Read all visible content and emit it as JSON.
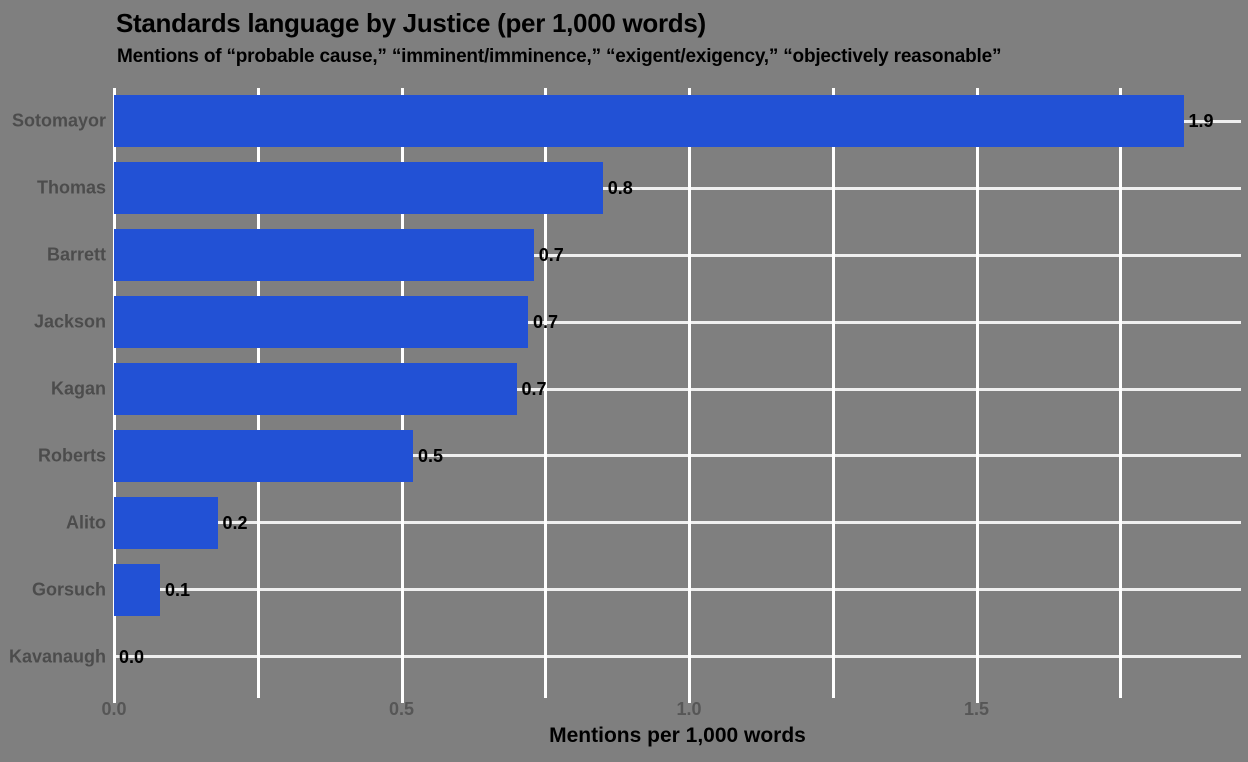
{
  "chart_data": {
    "type": "bar",
    "orientation": "horizontal",
    "title": "Standards language by Justice (per 1,000 words)",
    "subtitle": "Mentions of “probable cause,” “imminent/imminence,” “exigent/exigency,” “objectively reasonable”",
    "xlabel": "Mentions per 1,000 words",
    "categories": [
      "Sotomayor",
      "Thomas",
      "Barrett",
      "Jackson",
      "Kagan",
      "Roberts",
      "Alito",
      "Gorsuch",
      "Kavanaugh"
    ],
    "values": [
      1.9,
      0.8,
      0.7,
      0.7,
      0.7,
      0.5,
      0.2,
      0.1,
      0.0
    ],
    "value_labels": [
      "1.9",
      "0.8",
      "0.7",
      "0.7",
      "0.7",
      "0.5",
      "0.2",
      "0.1",
      "0.0"
    ],
    "bar_values_precise": [
      1.86,
      0.85,
      0.73,
      0.72,
      0.7,
      0.52,
      0.18,
      0.08,
      0.0
    ],
    "xlim": [
      0,
      1.96
    ],
    "x_grid_values": [
      0,
      0.25,
      0.5,
      0.75,
      1.0,
      1.25,
      1.5,
      1.75
    ],
    "x_major_ticks": [
      {
        "value": 0,
        "label": "0.0"
      },
      {
        "value": 0.5,
        "label": "0.5"
      },
      {
        "value": 1.0,
        "label": "1.0"
      },
      {
        "value": 1.5,
        "label": "1.5"
      }
    ],
    "grid": {
      "vertical_minor_interval": 0.25,
      "horizontal_at_each_category": true
    },
    "legend": "none",
    "colors": {
      "background": "#7f7f7f",
      "bar": "#2251d5",
      "gridline": "#ffffff",
      "title": "#000000",
      "subtitle": "#000000",
      "category_label": "#4c4c4c",
      "x_tick_label": "#565656",
      "value_label": "#000000",
      "axis_title": "#000000"
    }
  }
}
